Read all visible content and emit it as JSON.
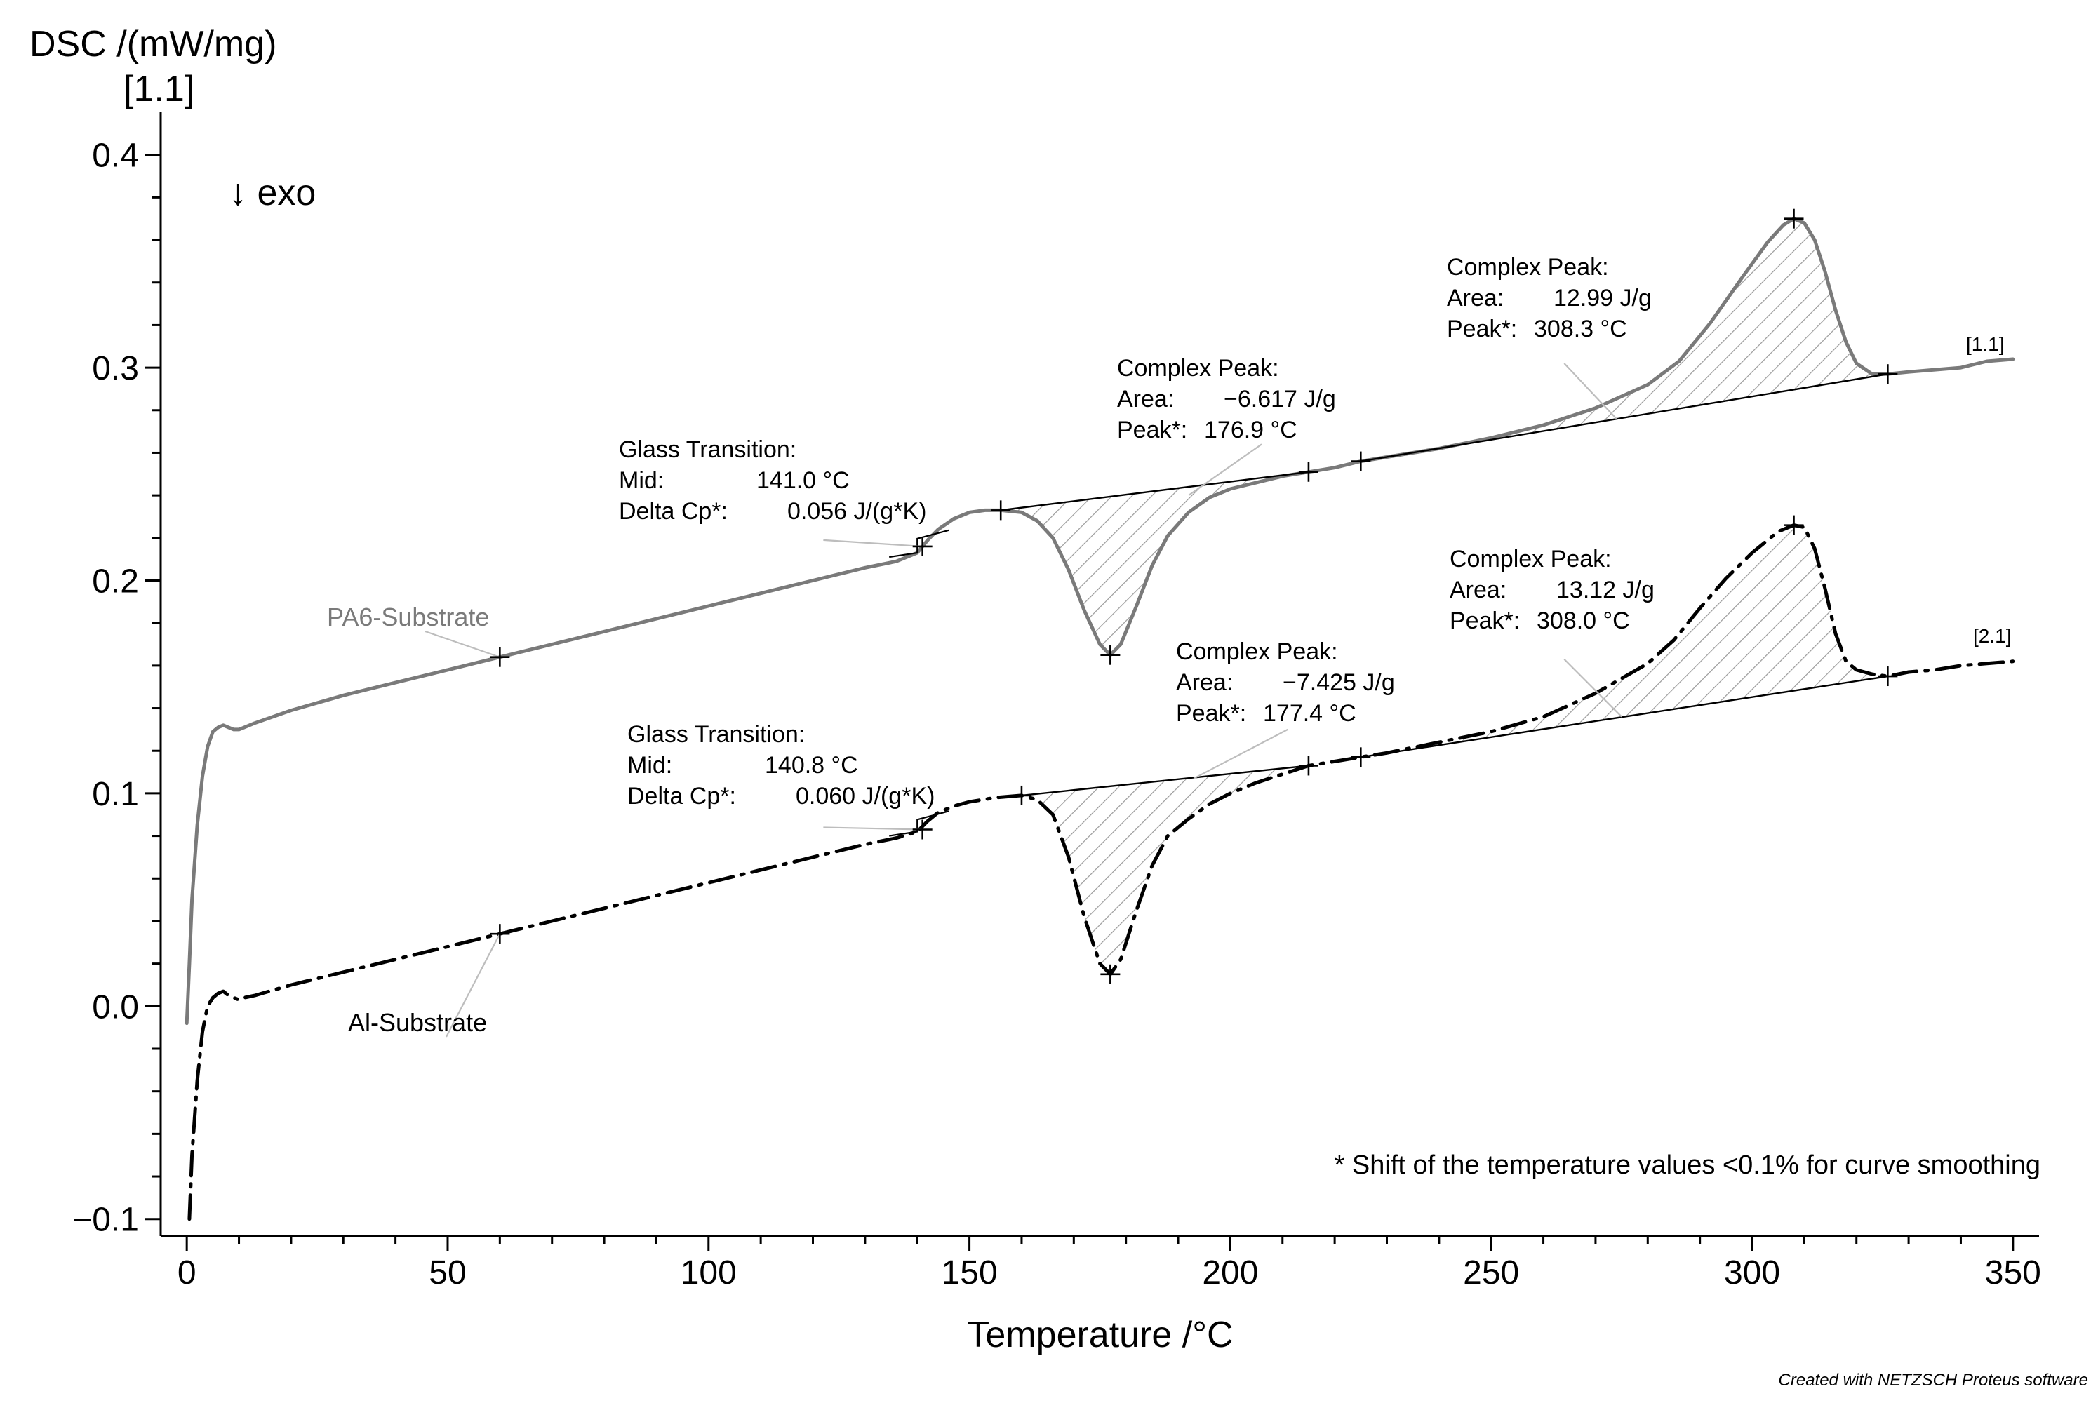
{
  "chart_data": {
    "type": "line",
    "ylabel": "DSC /(mW/mg)",
    "ylabel_tag": "[1.1]",
    "xlabel": "Temperature /°C",
    "exo_label": "↓ exo",
    "xlim": [
      -5,
      355
    ],
    "ylim": [
      -0.108,
      0.42
    ],
    "xticks": [
      0,
      50,
      100,
      150,
      200,
      250,
      300,
      350
    ],
    "xtick_labels": [
      "0",
      "50",
      "100",
      "150",
      "200",
      "250",
      "300",
      "350"
    ],
    "yticks": [
      -0.1,
      0.0,
      0.1,
      0.2,
      0.3,
      0.4
    ],
    "ytick_labels": [
      "−0.1",
      "0.0",
      "0.1",
      "0.2",
      "0.3",
      "0.4"
    ],
    "series": [
      {
        "name": "PA6-Substrate",
        "tag": "[1.1]",
        "color": "#7a7a7a",
        "style": "solid",
        "points": [
          [
            0,
            -0.008
          ],
          [
            0.5,
            0.02
          ],
          [
            1,
            0.05
          ],
          [
            2,
            0.085
          ],
          [
            3,
            0.108
          ],
          [
            4,
            0.122
          ],
          [
            5,
            0.129
          ],
          [
            6,
            0.131
          ],
          [
            7,
            0.132
          ],
          [
            8,
            0.131
          ],
          [
            9,
            0.13
          ],
          [
            10,
            0.13
          ],
          [
            11,
            0.131
          ],
          [
            13,
            0.133
          ],
          [
            20,
            0.139
          ],
          [
            30,
            0.146
          ],
          [
            40,
            0.152
          ],
          [
            50,
            0.158
          ],
          [
            60,
            0.164
          ],
          [
            70,
            0.17
          ],
          [
            80,
            0.176
          ],
          [
            90,
            0.182
          ],
          [
            100,
            0.188
          ],
          [
            110,
            0.194
          ],
          [
            120,
            0.2
          ],
          [
            130,
            0.206
          ],
          [
            136,
            0.209
          ],
          [
            140,
            0.213
          ],
          [
            142,
            0.219
          ],
          [
            144,
            0.224
          ],
          [
            147,
            0.229
          ],
          [
            150,
            0.232
          ],
          [
            153,
            0.233
          ],
          [
            156,
            0.233
          ],
          [
            160,
            0.232
          ],
          [
            163,
            0.228
          ],
          [
            166,
            0.22
          ],
          [
            169,
            0.205
          ],
          [
            172,
            0.186
          ],
          [
            175,
            0.17
          ],
          [
            177,
            0.165
          ],
          [
            179,
            0.17
          ],
          [
            182,
            0.188
          ],
          [
            185,
            0.207
          ],
          [
            188,
            0.221
          ],
          [
            192,
            0.232
          ],
          [
            196,
            0.239
          ],
          [
            200,
            0.243
          ],
          [
            205,
            0.246
          ],
          [
            210,
            0.249
          ],
          [
            215,
            0.251
          ],
          [
            220,
            0.253
          ],
          [
            225,
            0.256
          ],
          [
            230,
            0.258
          ],
          [
            240,
            0.262
          ],
          [
            250,
            0.267
          ],
          [
            260,
            0.273
          ],
          [
            270,
            0.281
          ],
          [
            280,
            0.292
          ],
          [
            286,
            0.303
          ],
          [
            292,
            0.321
          ],
          [
            298,
            0.342
          ],
          [
            303,
            0.359
          ],
          [
            306,
            0.367
          ],
          [
            308,
            0.37
          ],
          [
            310,
            0.368
          ],
          [
            312,
            0.36
          ],
          [
            314,
            0.345
          ],
          [
            316,
            0.327
          ],
          [
            318,
            0.312
          ],
          [
            320,
            0.302
          ],
          [
            323,
            0.297
          ],
          [
            326,
            0.297
          ],
          [
            330,
            0.298
          ],
          [
            335,
            0.299
          ],
          [
            340,
            0.3
          ],
          [
            345,
            0.303
          ],
          [
            350,
            0.304
          ]
        ]
      },
      {
        "name": "Al-Substrate",
        "tag": "[2.1]",
        "color": "#000000",
        "style": "dash-dot",
        "points": [
          [
            0.5,
            -0.1
          ],
          [
            1,
            -0.07
          ],
          [
            2,
            -0.035
          ],
          [
            3,
            -0.012
          ],
          [
            4,
            0.0
          ],
          [
            5,
            0.004
          ],
          [
            6,
            0.006
          ],
          [
            7,
            0.007
          ],
          [
            8,
            0.005
          ],
          [
            9,
            0.004
          ],
          [
            10,
            0.003
          ],
          [
            11,
            0.004
          ],
          [
            13,
            0.005
          ],
          [
            20,
            0.01
          ],
          [
            30,
            0.016
          ],
          [
            40,
            0.022
          ],
          [
            50,
            0.028
          ],
          [
            60,
            0.034
          ],
          [
            70,
            0.04
          ],
          [
            80,
            0.046
          ],
          [
            90,
            0.052
          ],
          [
            100,
            0.058
          ],
          [
            110,
            0.064
          ],
          [
            120,
            0.07
          ],
          [
            130,
            0.076
          ],
          [
            136,
            0.079
          ],
          [
            140,
            0.082
          ],
          [
            142,
            0.087
          ],
          [
            144,
            0.091
          ],
          [
            147,
            0.094
          ],
          [
            150,
            0.096
          ],
          [
            155,
            0.098
          ],
          [
            160,
            0.099
          ],
          [
            163,
            0.097
          ],
          [
            166,
            0.09
          ],
          [
            169,
            0.07
          ],
          [
            172,
            0.042
          ],
          [
            175,
            0.02
          ],
          [
            177,
            0.015
          ],
          [
            179,
            0.022
          ],
          [
            182,
            0.045
          ],
          [
            185,
            0.066
          ],
          [
            188,
            0.08
          ],
          [
            192,
            0.088
          ],
          [
            196,
            0.095
          ],
          [
            200,
            0.1
          ],
          [
            205,
            0.105
          ],
          [
            210,
            0.109
          ],
          [
            215,
            0.113
          ],
          [
            220,
            0.115
          ],
          [
            225,
            0.117
          ],
          [
            230,
            0.119
          ],
          [
            240,
            0.124
          ],
          [
            250,
            0.129
          ],
          [
            260,
            0.136
          ],
          [
            270,
            0.147
          ],
          [
            280,
            0.161
          ],
          [
            285,
            0.172
          ],
          [
            290,
            0.187
          ],
          [
            295,
            0.201
          ],
          [
            300,
            0.213
          ],
          [
            305,
            0.223
          ],
          [
            308,
            0.226
          ],
          [
            310,
            0.225
          ],
          [
            312,
            0.215
          ],
          [
            314,
            0.196
          ],
          [
            316,
            0.175
          ],
          [
            318,
            0.162
          ],
          [
            320,
            0.158
          ],
          [
            323,
            0.156
          ],
          [
            326,
            0.155
          ],
          [
            330,
            0.157
          ],
          [
            335,
            0.158
          ],
          [
            340,
            0.16
          ],
          [
            345,
            0.161
          ],
          [
            350,
            0.162
          ]
        ]
      }
    ],
    "evaluations": [
      {
        "series": "PA6-Substrate",
        "kind": "glass-transition",
        "title": "Glass Transition:",
        "row1_key": "Mid:",
        "row1_val": "141.0 °C",
        "row2_key": "Delta Cp*:",
        "row2_val": "0.056 J/(g*K)",
        "onset": [
          140,
          0.213
        ],
        "end": [
          142,
          0.219
        ],
        "marker": [
          141,
          0.216
        ],
        "leader_to": [
          122,
          0.219
        ]
      },
      {
        "series": "PA6-Substrate",
        "kind": "endotherm",
        "title": "Complex Peak:",
        "row1_key": "Area:",
        "row1_val": "−6.617 J/g",
        "row2_key": "Peak*:",
        "row2_val": "176.9 °C",
        "baseline": [
          [
            156,
            0.233
          ],
          [
            215,
            0.251
          ]
        ],
        "peak": [
          177,
          0.165
        ],
        "leader_from": [
          192,
          0.24
        ],
        "leader_to": [
          206,
          0.264
        ]
      },
      {
        "series": "PA6-Substrate",
        "kind": "exotherm",
        "title": "Complex Peak:",
        "row1_key": "Area:",
        "row1_val": "12.99 J/g",
        "row2_key": "Peak*:",
        "row2_val": "308.3 °C",
        "baseline": [
          [
            225,
            0.256
          ],
          [
            326,
            0.297
          ]
        ],
        "peak": [
          308,
          0.37
        ],
        "leader_from": [
          274,
          0.276
        ],
        "leader_to": [
          264,
          0.302
        ]
      },
      {
        "series": "Al-Substrate",
        "kind": "glass-transition",
        "title": "Glass Transition:",
        "row1_key": "Mid:",
        "row1_val": "140.8 °C",
        "row2_key": "Delta Cp*:",
        "row2_val": "0.060 J/(g*K)",
        "onset": [
          140,
          0.082
        ],
        "end": [
          142,
          0.087
        ],
        "marker": [
          141,
          0.083
        ],
        "leader_to": [
          122,
          0.084
        ]
      },
      {
        "series": "Al-Substrate",
        "kind": "endotherm",
        "title": "Complex Peak:",
        "row1_key": "Area:",
        "row1_val": "−7.425 J/g",
        "row2_key": "Peak*:",
        "row2_val": "177.4 °C",
        "baseline": [
          [
            160,
            0.099
          ],
          [
            215,
            0.113
          ]
        ],
        "peak": [
          177,
          0.015
        ],
        "leader_from": [
          193,
          0.107
        ],
        "leader_to": [
          211,
          0.13
        ]
      },
      {
        "series": "Al-Substrate",
        "kind": "exotherm",
        "title": "Complex Peak:",
        "row1_key": "Area:",
        "row1_val": "13.12 J/g",
        "row2_key": "Peak*:",
        "row2_val": "308.0 °C",
        "baseline": [
          [
            225,
            0.117
          ],
          [
            326,
            0.155
          ]
        ],
        "peak": [
          308,
          0.226
        ],
        "leader_from": [
          275,
          0.136
        ],
        "leader_to": [
          264,
          0.163
        ]
      }
    ],
    "markers": [
      {
        "series": "PA6-Substrate",
        "points": [
          [
            60,
            0.164
          ],
          [
            141,
            0.216
          ],
          [
            156,
            0.233
          ],
          [
            177,
            0.165
          ],
          [
            215,
            0.251
          ],
          [
            225,
            0.256
          ],
          [
            308,
            0.37
          ],
          [
            326,
            0.297
          ]
        ]
      },
      {
        "series": "Al-Substrate",
        "points": [
          [
            60,
            0.034
          ],
          [
            141,
            0.083
          ],
          [
            160,
            0.099
          ],
          [
            177,
            0.015
          ],
          [
            215,
            0.113
          ],
          [
            225,
            0.117
          ],
          [
            308,
            0.226
          ],
          [
            326,
            0.155
          ]
        ]
      }
    ],
    "curve_labels": [
      {
        "text": "PA6-Substrate",
        "color": "#7a7a7a",
        "leader_from": [
          55,
          0.175
        ],
        "leader_to": [
          60,
          0.164
        ]
      },
      {
        "text": "Al-Substrate",
        "color": "#000000",
        "leader_from": [
          55,
          0.023
        ],
        "leader_to": [
          60,
          0.034
        ]
      }
    ],
    "footnote": "* Shift of the temperature values <0.1% for curve smoothing",
    "credit": "Created with NETZSCH Proteus software"
  }
}
